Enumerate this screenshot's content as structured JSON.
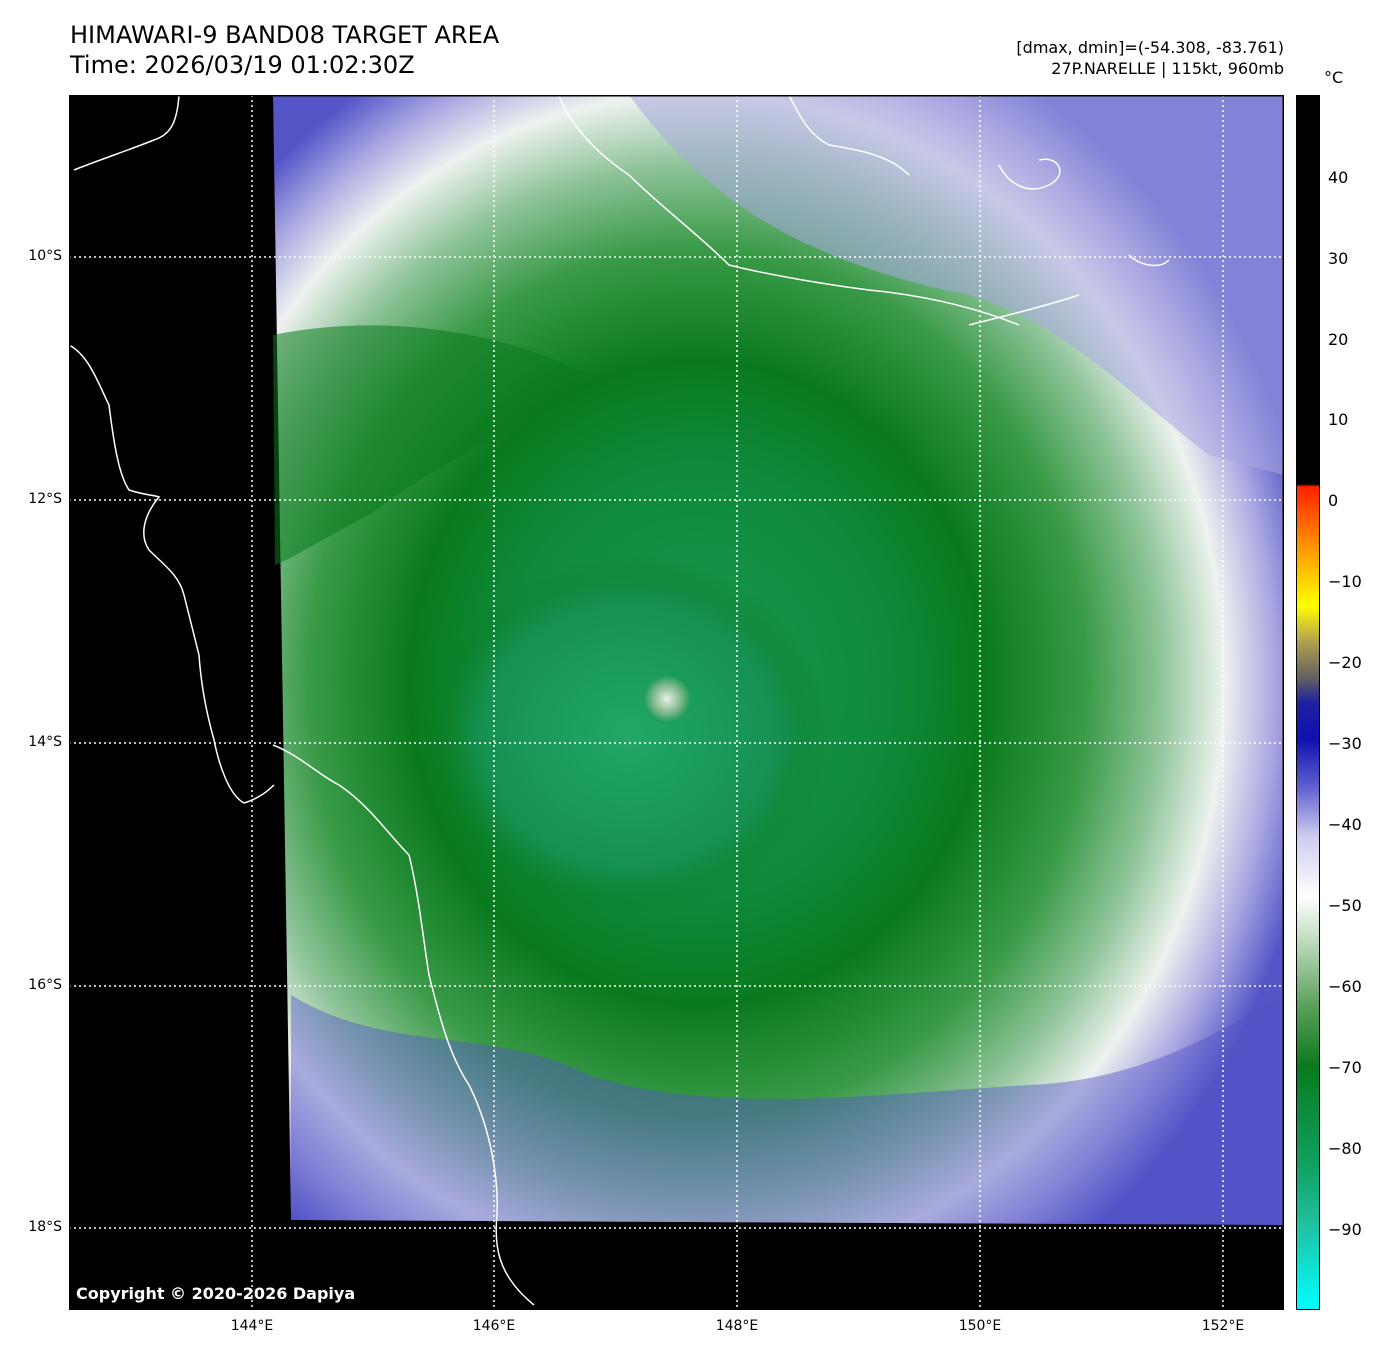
{
  "header": {
    "title_line1": "HIMAWARI-9 BAND08 TARGET AREA",
    "title_line2": "Time: 2026/03/19 01:02:30Z",
    "range_text": "[dmax, dmin]=(-54.308, -83.761)",
    "storm_text": "27P.NARELLE | 115kt, 960mb"
  },
  "map": {
    "lat_labels": [
      "10°S",
      "12°S",
      "14°S",
      "16°S",
      "18°S"
    ],
    "lon_labels": [
      "144°E",
      "146°E",
      "148°E",
      "150°E",
      "152°E"
    ],
    "copyright": "Copyright © 2020-2026 Dapiya",
    "colors": {
      "background": "#000000",
      "deep_green": "#0a7a1e",
      "core_green": "#1a9a55",
      "light_green": "#8fc49a",
      "white": "#f4f6f4",
      "lavender": "#aaa8e2",
      "blue": "#5555c8"
    }
  },
  "colorbar": {
    "unit": "°C",
    "ticks": [
      "40",
      "30",
      "20",
      "10",
      "0",
      "−10",
      "−20",
      "−30",
      "−40",
      "−50",
      "−60",
      "−70",
      "−80",
      "−90"
    ]
  }
}
